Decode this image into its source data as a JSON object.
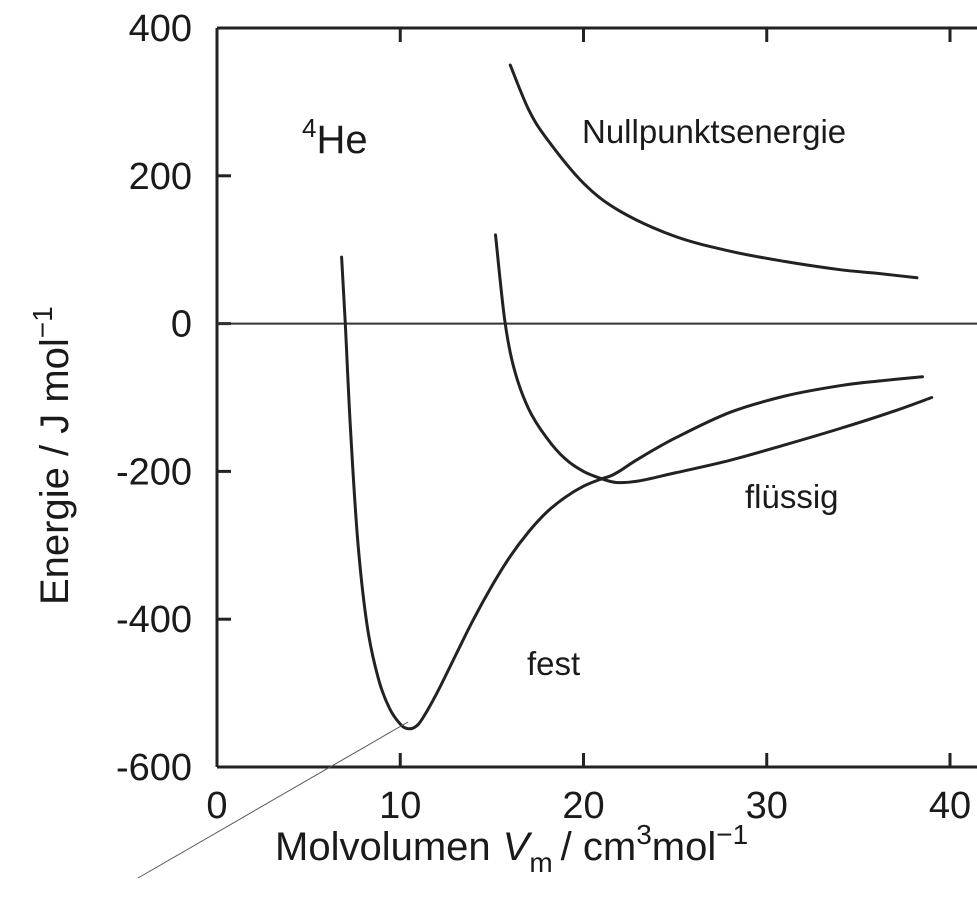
{
  "chart_data": {
    "type": "line",
    "xlabel": {
      "prefix": "Molvolumen",
      "symbol": "V",
      "subscript": "m",
      "unit_a": "/ cm",
      "sup_a": "3",
      "unit_b": "mol",
      "sup_b": "−1"
    },
    "ylabel": {
      "main": "Energie / J mol",
      "sup": "−1"
    },
    "xlim": [
      0,
      40
    ],
    "ylim": [
      -600,
      400
    ],
    "xticks": [
      0,
      10,
      20,
      30,
      40
    ],
    "yticks": [
      -600,
      -400,
      -200,
      0,
      200,
      400
    ],
    "xtick_labels": [
      "0",
      "10",
      "20",
      "30",
      "40"
    ],
    "ytick_labels": [
      "-600",
      "-400",
      "-200",
      "0",
      "200",
      "400"
    ],
    "zero_line": true,
    "grid": false,
    "annotations": {
      "isotope_sup": "4",
      "isotope": "He",
      "zero_point": "Nullpunktsenergie",
      "liquid": "flüssig",
      "solid": "fest"
    },
    "series": [
      {
        "name": "Nullpunktsenergie",
        "x": [
          16.0,
          17.0,
          18.0,
          20.0,
          22.0,
          25.0,
          28.0,
          31.0,
          34.0,
          36.0,
          38.2
        ],
        "y": [
          350,
          290,
          250,
          190,
          152,
          118,
          98,
          84,
          73,
          68,
          62
        ]
      },
      {
        "name": "flüssig",
        "x": [
          15.2,
          15.7,
          16.2,
          17.0,
          18.0,
          19.0,
          20.0,
          21.0,
          21.8,
          23.0,
          25.0,
          28.0,
          31.0,
          34.0,
          37.0,
          39.0
        ],
        "y": [
          120,
          5,
          -60,
          -115,
          -155,
          -183,
          -200,
          -210,
          -215,
          -213,
          -202,
          -185,
          -164,
          -142,
          -118,
          -100
        ]
      },
      {
        "name": "fest",
        "x": [
          6.8,
          7.0,
          7.3,
          7.7,
          8.2,
          8.8,
          9.4,
          10.0,
          10.4,
          10.8,
          11.2,
          12.0,
          13.0,
          14.0,
          15.0,
          16.0,
          17.0,
          18.0,
          19.0,
          20.0,
          21.0,
          21.5,
          22.0,
          23.0,
          25.0,
          28.0,
          31.0,
          34.0,
          36.0,
          38.5
        ],
        "y": [
          90,
          0,
          -150,
          -300,
          -410,
          -480,
          -520,
          -542,
          -548,
          -546,
          -535,
          -500,
          -450,
          -400,
          -355,
          -315,
          -282,
          -255,
          -235,
          -220,
          -210,
          -206,
          -199,
          -183,
          -155,
          -120,
          -98,
          -84,
          -78,
          -72
        ]
      }
    ],
    "pointer_line": true
  }
}
